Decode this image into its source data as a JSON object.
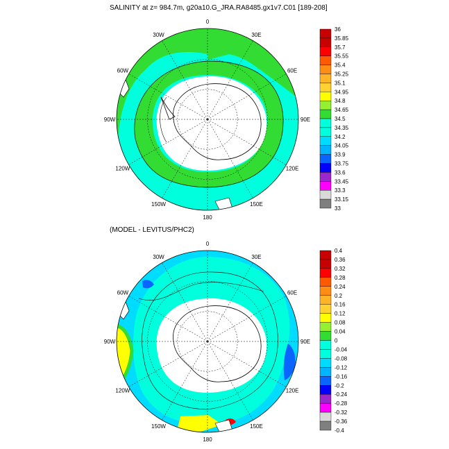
{
  "top_panel": {
    "title": "SALINITY at z= 984.7m, g20a10.G_JRA.RA8485.gx1v7.C01 [189-208]",
    "longitude_labels": [
      "0",
      "30E",
      "60E",
      "90E",
      "120E",
      "150E",
      "180",
      "150W",
      "120W",
      "90W",
      "60W",
      "30W"
    ],
    "colorbar": {
      "colors": [
        "#7f7f7f",
        "#d9d9d9",
        "#ff00ff",
        "#9c27cc",
        "#0000ff",
        "#0a64ff",
        "#00b4ff",
        "#00dcff",
        "#00ffdc",
        "#32dc32",
        "#96f032",
        "#ffff00",
        "#ffd232",
        "#ffb428",
        "#ff8c14",
        "#ff5a00",
        "#ff0000",
        "#c80000"
      ],
      "labels": [
        "36",
        "35.85",
        "35.7",
        "35.55",
        "35.4",
        "35.25",
        "35.1",
        "34.95",
        "34.8",
        "34.65",
        "34.5",
        "34.35",
        "34.2",
        "34.05",
        "33.9",
        "33.75",
        "33.6",
        "33.45",
        "33.3",
        "33.15",
        "33"
      ]
    }
  },
  "bottom_panel": {
    "title": "(MODEL - LEVITUS/PHC2)",
    "longitude_labels": [
      "0",
      "30E",
      "60E",
      "90E",
      "120E",
      "150E",
      "180",
      "150W",
      "120W",
      "90W",
      "60W",
      "30W"
    ],
    "colorbar": {
      "colors": [
        "#7f7f7f",
        "#d9d9d9",
        "#ff00ff",
        "#9c27cc",
        "#0000ff",
        "#0a64ff",
        "#00b4ff",
        "#00dcff",
        "#00ffdc",
        "#00ffdc",
        "#32dc32",
        "#96f032",
        "#ffff00",
        "#ffd232",
        "#ffb428",
        "#ff8c14",
        "#ff5a00",
        "#ff0000",
        "#c80000"
      ],
      "labels": [
        "0.4",
        "0.36",
        "0.32",
        "0.28",
        "0.24",
        "0.2",
        "0.16",
        "0.12",
        "0.08",
        "0.04",
        "0",
        "-0.04",
        "-0.08",
        "-0.12",
        "-0.16",
        "-0.2",
        "-0.24",
        "-0.28",
        "-0.32",
        "-0.36",
        "-0.4"
      ]
    }
  }
}
